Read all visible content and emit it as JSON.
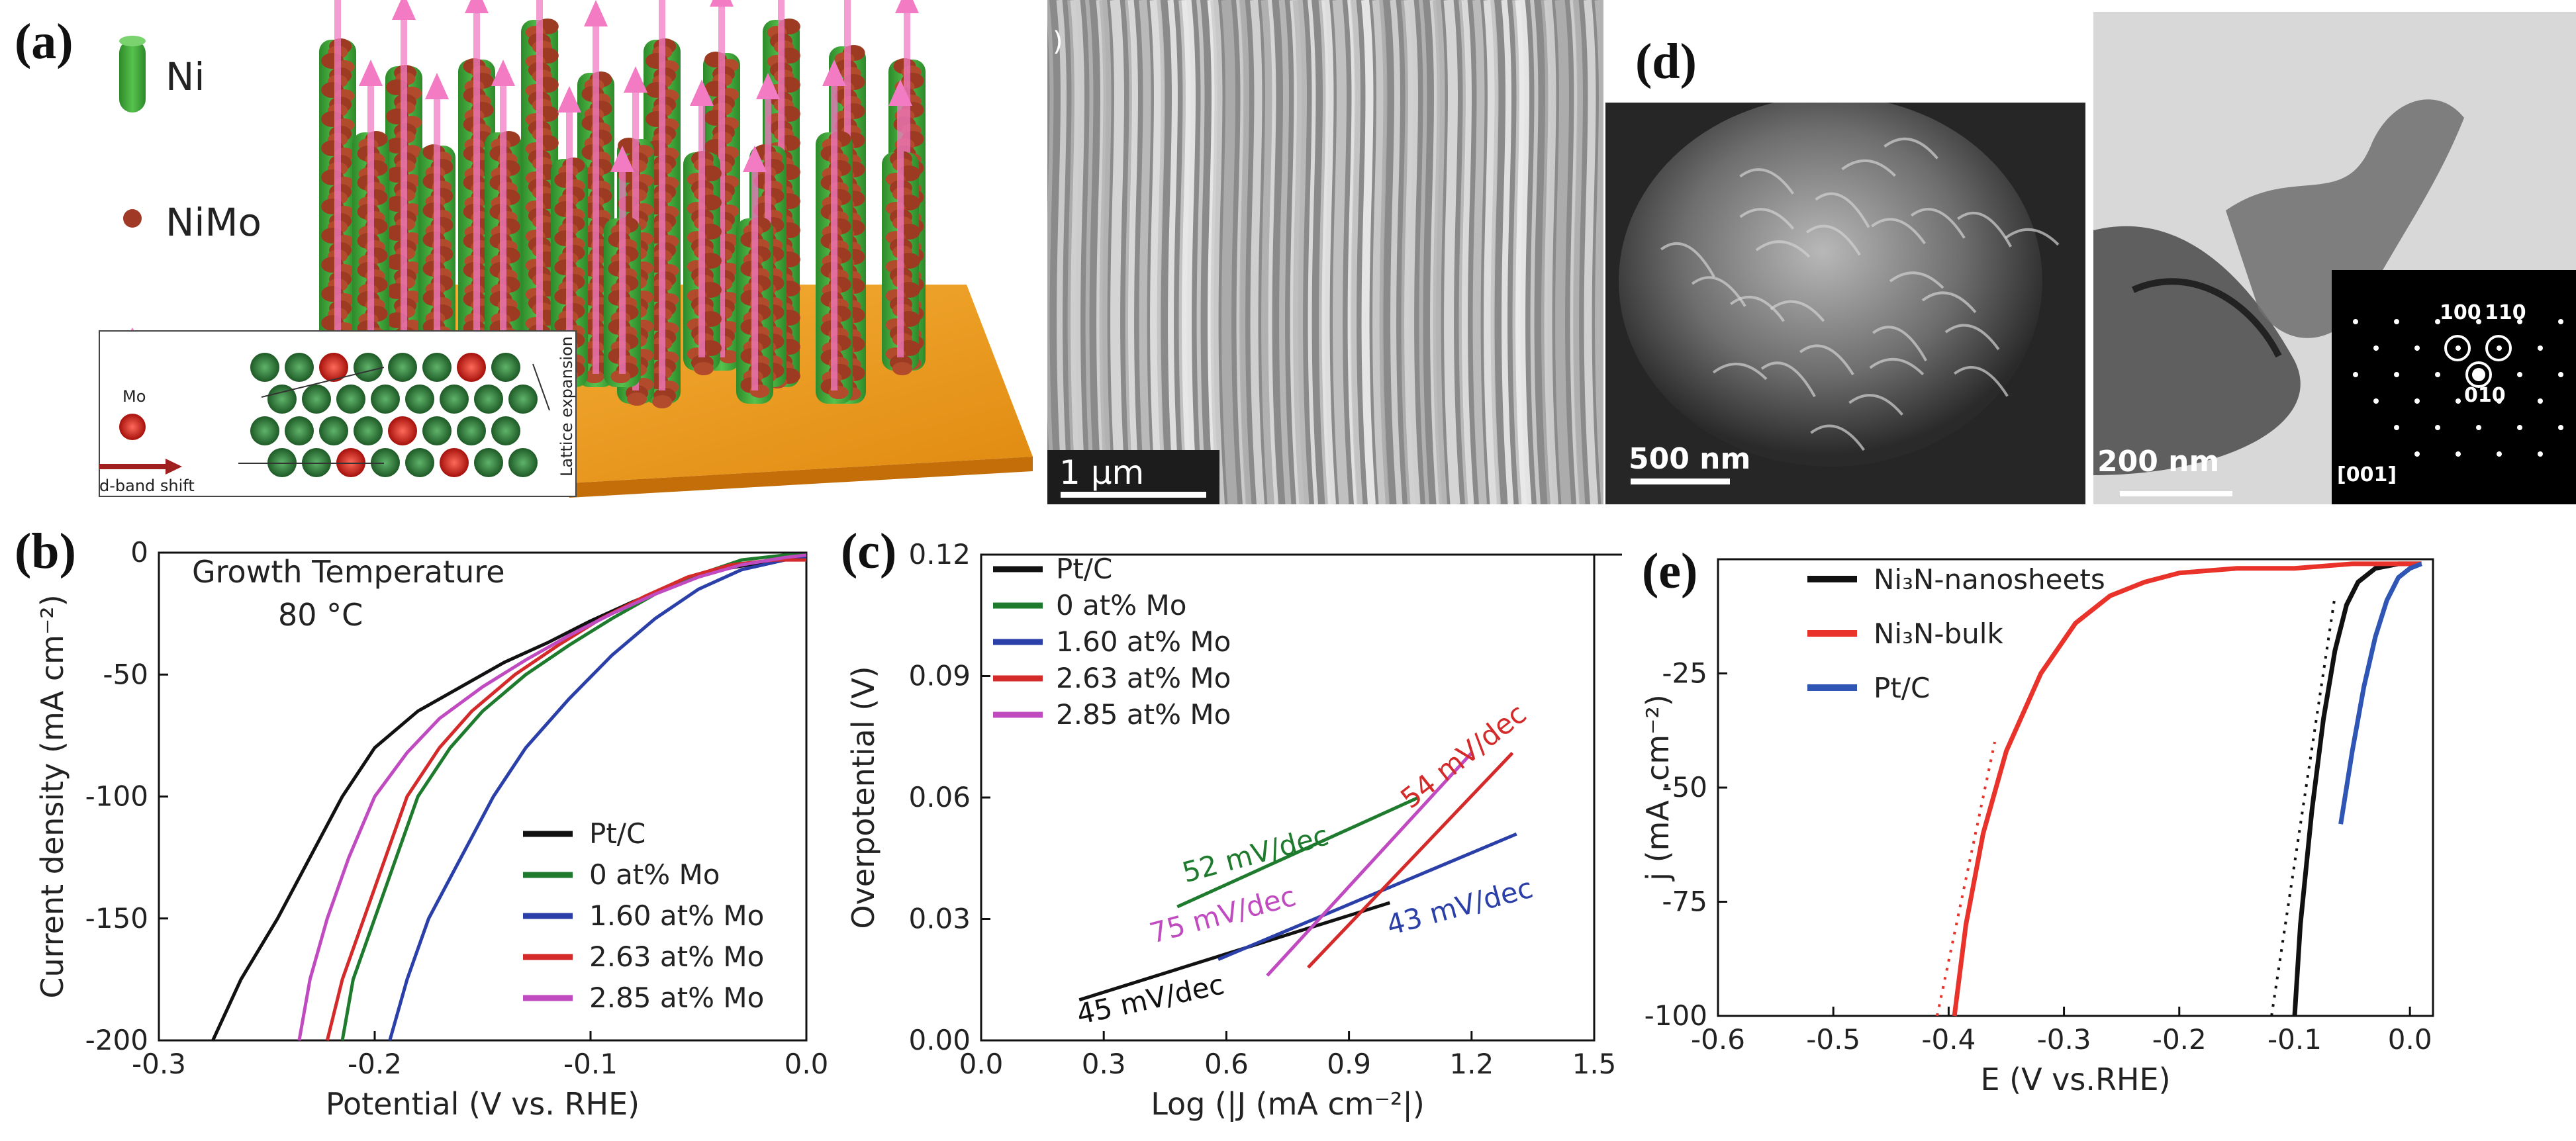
{
  "panel_labels": {
    "a": "(a)",
    "b": "(b)",
    "c": "(c)",
    "d": "(d)",
    "e": "(e)"
  },
  "panel_a": {
    "legend": [
      {
        "label": "Ni",
        "color": "#3fae3a"
      },
      {
        "label": "NiMo",
        "color": "#a03a26"
      }
    ],
    "inset": {
      "atom_label": "Mo",
      "arrow_label": "d-band shift",
      "side_label": "Lattice expansion"
    }
  },
  "sem_image": {
    "scale_bar": "1 μm",
    "corner_text": ")"
  },
  "panel_d": {
    "sem_scale": "500 nm",
    "tem_scale": "200 nm",
    "saed_spots": [
      "100",
      "110",
      "010"
    ],
    "zone_axis": "[001]"
  },
  "chart_data": [
    {
      "id": "b",
      "type": "line",
      "annotation": [
        "Growth Temperature",
        "80 °C"
      ],
      "xlabel": "Potential (V vs. RHE)",
      "ylabel": "Current density (mA cm⁻²)",
      "xlim": [
        -0.3,
        0.0
      ],
      "ylim": [
        -200,
        0
      ],
      "xticks": [
        -0.3,
        -0.2,
        -0.1,
        0.0
      ],
      "xtick_labels": [
        "-0.3",
        "-0.2",
        "-0.1",
        "0.0"
      ],
      "yticks": [
        0,
        -50,
        -100,
        -150,
        -200
      ],
      "ytick_labels": [
        "0",
        "-50",
        "-100",
        "-150",
        "-200"
      ],
      "legend_position": "lower-right",
      "series": [
        {
          "name": "Pt/C",
          "color": "#111111",
          "x": [
            -0.275,
            -0.262,
            -0.245,
            -0.23,
            -0.215,
            -0.2,
            -0.18,
            -0.16,
            -0.14,
            -0.12,
            -0.1,
            -0.08,
            -0.06,
            -0.04,
            -0.02,
            0.0
          ],
          "y": [
            -200,
            -175,
            -150,
            -125,
            -100,
            -80,
            -65,
            -55,
            -45,
            -37,
            -28,
            -20,
            -13,
            -7,
            -4,
            -2
          ]
        },
        {
          "name": "0 at% Mo",
          "color": "#1e7a2c",
          "x": [
            -0.215,
            -0.21,
            -0.2,
            -0.19,
            -0.18,
            -0.165,
            -0.15,
            -0.13,
            -0.11,
            -0.09,
            -0.07,
            -0.05,
            -0.03,
            -0.01,
            0.0
          ],
          "y": [
            -200,
            -175,
            -150,
            -125,
            -100,
            -80,
            -65,
            -50,
            -38,
            -27,
            -17,
            -9,
            -3,
            -1,
            -1
          ]
        },
        {
          "name": "1.60 at% Mo",
          "color": "#2a3fa8",
          "x": [
            -0.193,
            -0.185,
            -0.175,
            -0.16,
            -0.145,
            -0.13,
            -0.11,
            -0.09,
            -0.07,
            -0.05,
            -0.03,
            -0.01,
            0.0
          ],
          "y": [
            -200,
            -175,
            -150,
            -125,
            -100,
            -80,
            -60,
            -42,
            -27,
            -15,
            -7,
            -3,
            -2
          ]
        },
        {
          "name": "2.63 at% Mo",
          "color": "#d42a2a",
          "x": [
            -0.222,
            -0.215,
            -0.205,
            -0.195,
            -0.185,
            -0.17,
            -0.155,
            -0.135,
            -0.115,
            -0.095,
            -0.075,
            -0.055,
            -0.035,
            -0.015,
            0.0
          ],
          "y": [
            -200,
            -175,
            -150,
            -125,
            -100,
            -80,
            -65,
            -50,
            -38,
            -27,
            -18,
            -10,
            -5,
            -3,
            -3
          ]
        },
        {
          "name": "2.85 at% Mo",
          "color": "#c04ac0",
          "x": [
            -0.235,
            -0.23,
            -0.222,
            -0.212,
            -0.2,
            -0.185,
            -0.17,
            -0.15,
            -0.13,
            -0.11,
            -0.09,
            -0.07,
            -0.05,
            -0.03,
            -0.01,
            0.0
          ],
          "y": [
            -200,
            -175,
            -150,
            -125,
            -100,
            -82,
            -68,
            -55,
            -44,
            -34,
            -25,
            -17,
            -10,
            -5,
            -2,
            -1
          ]
        }
      ]
    },
    {
      "id": "c",
      "type": "line",
      "xlabel": "Log (|J (mA cm⁻²|)",
      "ylabel": "Overpotential (V)",
      "xlim": [
        0.0,
        1.5
      ],
      "ylim": [
        0.0,
        0.12
      ],
      "xticks": [
        0.0,
        0.3,
        0.6,
        0.9,
        1.2,
        1.5
      ],
      "xtick_labels": [
        "0.0",
        "0.3",
        "0.6",
        "0.9",
        "1.2",
        "1.5"
      ],
      "yticks": [
        0.0,
        0.03,
        0.06,
        0.09,
        0.12
      ],
      "ytick_labels": [
        "0.00",
        "0.03",
        "0.06",
        "0.09",
        "0.12"
      ],
      "legend_position": "top-left",
      "series": [
        {
          "name": "Pt/C",
          "color": "#111111",
          "x": [
            0.24,
            1.0
          ],
          "y": [
            0.01,
            0.034
          ],
          "slope_label": "45 mV/dec"
        },
        {
          "name": "0 at% Mo",
          "color": "#1e7a2c",
          "x": [
            0.48,
            1.07
          ],
          "y": [
            0.033,
            0.06
          ],
          "slope_label": "52 mV/dec"
        },
        {
          "name": "1.60 at% Mo",
          "color": "#2a3fa8",
          "x": [
            0.58,
            1.31
          ],
          "y": [
            0.02,
            0.051
          ],
          "slope_label": "43 mV/dec"
        },
        {
          "name": "2.63 at% Mo",
          "color": "#d42a2a",
          "x": [
            0.8,
            1.3
          ],
          "y": [
            0.018,
            0.071
          ],
          "slope_label": "54 mV/dec"
        },
        {
          "name": "2.85 at% Mo",
          "color": "#c04ac0",
          "x": [
            0.7,
            1.2
          ],
          "y": [
            0.016,
            0.071
          ],
          "slope_label": "75 mV/dec"
        }
      ]
    },
    {
      "id": "e",
      "type": "line",
      "xlabel": "E (V vs.RHE)",
      "ylabel": "j (mA .cm⁻²)",
      "xlim": [
        -0.6,
        0.02
      ],
      "ylim": [
        -100,
        0
      ],
      "xticks": [
        -0.6,
        -0.5,
        -0.4,
        -0.3,
        -0.2,
        -0.1,
        0.0
      ],
      "xtick_labels": [
        "-0.6",
        "-0.5",
        "-0.4",
        "-0.3",
        "-0.2",
        "-0.1",
        "0.0"
      ],
      "yticks": [
        -25,
        -50,
        -75,
        -100
      ],
      "ytick_labels": [
        "-25",
        "-50",
        "-75",
        "-100"
      ],
      "legend_position": "top-left",
      "series": [
        {
          "name": "Ni₃N-nanosheets",
          "color": "#111111",
          "x": [
            -0.1,
            -0.095,
            -0.085,
            -0.075,
            -0.065,
            -0.055,
            -0.045,
            -0.03,
            -0.01,
            0.01
          ],
          "y": [
            -100,
            -80,
            -55,
            -35,
            -20,
            -10,
            -5,
            -2,
            -1,
            -1
          ]
        },
        {
          "name": "Ni₃N-bulk",
          "color": "#e8322a",
          "x": [
            -0.395,
            -0.385,
            -0.37,
            -0.35,
            -0.32,
            -0.29,
            -0.26,
            -0.23,
            -0.2,
            -0.15,
            -0.1,
            -0.05,
            0.0,
            0.01
          ],
          "y": [
            -100,
            -80,
            -60,
            -42,
            -25,
            -14,
            -8,
            -5,
            -3,
            -2,
            -2,
            -1,
            -1,
            -1
          ]
        },
        {
          "name": "Pt/C",
          "color": "#2f55b5",
          "x": [
            -0.06,
            -0.05,
            -0.04,
            -0.03,
            -0.02,
            -0.01,
            0.0,
            0.01
          ],
          "y": [
            -58,
            -42,
            -28,
            -17,
            -9,
            -4,
            -2,
            -1
          ]
        }
      ],
      "fits": [
        {
          "color": "#111111",
          "x": [
            -0.12,
            -0.065
          ],
          "y": [
            -100,
            -8
          ]
        },
        {
          "color": "#e8322a",
          "x": [
            -0.41,
            -0.36
          ],
          "y": [
            -100,
            -40
          ]
        }
      ]
    }
  ]
}
